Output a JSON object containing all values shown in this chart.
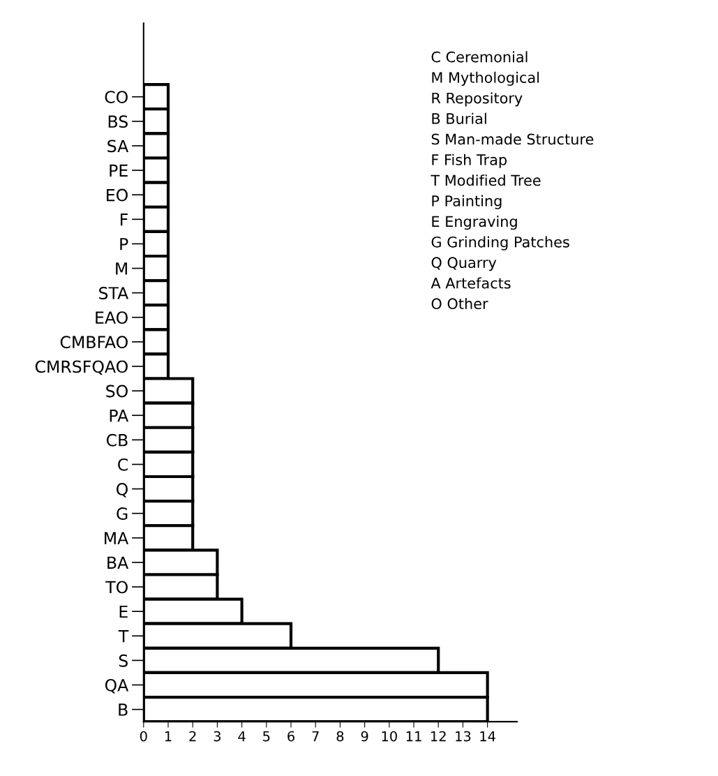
{
  "chart_data": {
    "type": "bar",
    "orientation": "horizontal",
    "color": "#ffffff",
    "categories": [
      "CO",
      "BS",
      "SA",
      "PE",
      "EO",
      "F",
      "P",
      "M",
      "STA",
      "EAO",
      "CMBFAO",
      "CMRSFQAO",
      "SO",
      "PA",
      "CB",
      "C",
      "Q",
      "G",
      "MA",
      "BA",
      "TO",
      "E",
      "T",
      "S",
      "QA",
      "B"
    ],
    "values": [
      1,
      1,
      1,
      1,
      1,
      1,
      1,
      1,
      1,
      1,
      1,
      1,
      2,
      2,
      2,
      2,
      2,
      2,
      2,
      3,
      3,
      4,
      6,
      12,
      14,
      14
    ],
    "xlim": [
      0,
      15.2
    ],
    "xticks": [
      0,
      1,
      2,
      3,
      4,
      5,
      6,
      7,
      8,
      9,
      10,
      11,
      12,
      13,
      14
    ],
    "grid": false,
    "legend": false,
    "annotations": [
      "C Ceremonial",
      "M Mythological",
      "R Repository",
      "B Burial",
      "S Man-made Structure",
      "F Fish Trap",
      "T Modified Tree",
      "P Painting",
      "E Engraving",
      "G Grinding Patches",
      "Q Quarry",
      "A Artefacts",
      "O Other"
    ]
  }
}
